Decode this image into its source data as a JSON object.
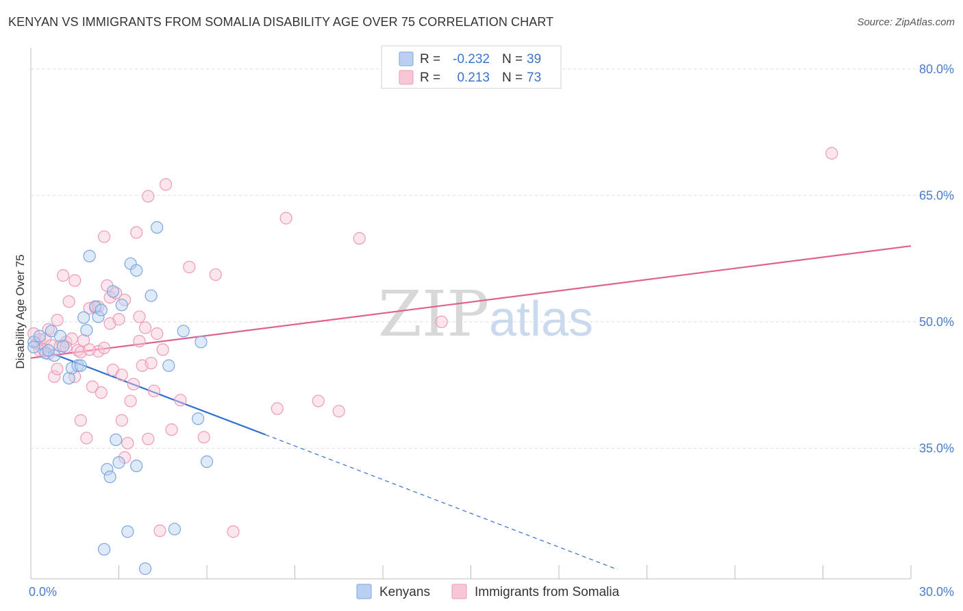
{
  "header": {
    "title": "KENYAN VS IMMIGRANTS FROM SOMALIA DISABILITY AGE OVER 75 CORRELATION CHART",
    "source": "Source: ZipAtlas.com"
  },
  "watermark": {
    "part1": "ZIP",
    "part2": "atlas"
  },
  "chart_data": {
    "type": "scatter",
    "ylabel": "Disability Age Over 75",
    "xlim": [
      0,
      30
    ],
    "ylim": [
      19.5,
      82.5
    ],
    "x_tick_labels": [
      {
        "value": 0,
        "label": "0.0%"
      },
      {
        "value": 30,
        "label": "30.0%"
      }
    ],
    "y_tick_labels": [
      {
        "value": 80,
        "label": "80.0%"
      },
      {
        "value": 65,
        "label": "65.0%"
      },
      {
        "value": 50,
        "label": "50.0%"
      },
      {
        "value": 35,
        "label": "35.0%"
      }
    ],
    "y_gridlines": [
      80,
      65,
      50,
      35
    ],
    "x_minor_ticks": [
      3,
      6,
      9,
      12,
      15,
      18,
      21,
      24,
      27,
      30
    ],
    "grid": true,
    "legend_position": "top-center",
    "series": [
      {
        "name": "Kenyans",
        "color": "#7aa6e0",
        "fill": "#b9d0f0",
        "line_color": "#2f6fd0",
        "R": "-0.232",
        "N": "39",
        "trend": {
          "x0": 0,
          "y0": 47.2,
          "x1": 8.0,
          "y1": 36.6,
          "dash_to_x": 20.0,
          "dash_to_y": 20.6
        },
        "points": [
          [
            0.1,
            47.6
          ],
          [
            0.3,
            48.3
          ],
          [
            0.5,
            46.3
          ],
          [
            0.7,
            48.9
          ],
          [
            0.8,
            46.0
          ],
          [
            1.0,
            48.3
          ],
          [
            1.1,
            47.1
          ],
          [
            1.3,
            43.3
          ],
          [
            1.4,
            44.5
          ],
          [
            1.6,
            44.8
          ],
          [
            1.7,
            44.8
          ],
          [
            1.8,
            50.5
          ],
          [
            1.9,
            49.0
          ],
          [
            2.0,
            57.8
          ],
          [
            2.2,
            51.8
          ],
          [
            2.3,
            50.6
          ],
          [
            2.4,
            51.4
          ],
          [
            2.5,
            23.0
          ],
          [
            2.6,
            32.5
          ],
          [
            2.7,
            31.6
          ],
          [
            2.8,
            53.6
          ],
          [
            2.9,
            36.0
          ],
          [
            3.0,
            33.3
          ],
          [
            3.1,
            52.0
          ],
          [
            3.3,
            25.1
          ],
          [
            3.4,
            56.9
          ],
          [
            3.6,
            56.1
          ],
          [
            3.6,
            32.9
          ],
          [
            3.9,
            20.7
          ],
          [
            4.1,
            53.1
          ],
          [
            4.3,
            61.2
          ],
          [
            4.7,
            44.8
          ],
          [
            4.9,
            25.4
          ],
          [
            5.2,
            48.9
          ],
          [
            5.7,
            38.5
          ],
          [
            5.8,
            47.6
          ],
          [
            6.0,
            33.4
          ],
          [
            0.1,
            47.0
          ],
          [
            0.6,
            46.6
          ]
        ]
      },
      {
        "name": "Immigrants from Somalia",
        "color": "#ef9ab4",
        "fill": "#f7c7d6",
        "line_color": "#e0608e",
        "R": "0.213",
        "N": "73",
        "trend": {
          "x0": 0,
          "y0": 45.7,
          "x1": 30,
          "y1": 59.0
        },
        "points": [
          [
            0.1,
            48.6
          ],
          [
            0.2,
            47.4
          ],
          [
            0.3,
            47.9
          ],
          [
            0.4,
            46.8
          ],
          [
            0.5,
            48.0
          ],
          [
            0.6,
            46.2
          ],
          [
            0.7,
            47.2
          ],
          [
            0.8,
            43.5
          ],
          [
            0.9,
            50.2
          ],
          [
            1.0,
            47.1
          ],
          [
            1.1,
            55.5
          ],
          [
            1.2,
            47.6
          ],
          [
            1.3,
            52.4
          ],
          [
            1.4,
            48.0
          ],
          [
            1.5,
            43.5
          ],
          [
            1.5,
            54.9
          ],
          [
            1.6,
            46.6
          ],
          [
            1.7,
            38.3
          ],
          [
            1.8,
            47.8
          ],
          [
            1.9,
            36.2
          ],
          [
            2.0,
            51.6
          ],
          [
            2.1,
            42.3
          ],
          [
            2.2,
            51.7
          ],
          [
            2.3,
            46.5
          ],
          [
            2.4,
            41.6
          ],
          [
            2.5,
            46.9
          ],
          [
            2.5,
            60.1
          ],
          [
            2.6,
            54.3
          ],
          [
            2.7,
            49.8
          ],
          [
            2.7,
            52.9
          ],
          [
            2.8,
            44.3
          ],
          [
            2.9,
            53.4
          ],
          [
            3.0,
            50.3
          ],
          [
            3.1,
            38.3
          ],
          [
            3.1,
            43.7
          ],
          [
            3.2,
            33.9
          ],
          [
            3.3,
            35.6
          ],
          [
            3.4,
            40.6
          ],
          [
            3.5,
            42.6
          ],
          [
            3.6,
            60.6
          ],
          [
            3.7,
            47.7
          ],
          [
            3.7,
            50.6
          ],
          [
            3.8,
            44.8
          ],
          [
            3.9,
            49.3
          ],
          [
            4.0,
            36.1
          ],
          [
            4.0,
            64.9
          ],
          [
            4.1,
            45.1
          ],
          [
            4.2,
            41.8
          ],
          [
            4.3,
            48.6
          ],
          [
            4.4,
            25.2
          ],
          [
            4.5,
            46.7
          ],
          [
            4.6,
            66.3
          ],
          [
            4.8,
            37.2
          ],
          [
            5.1,
            40.7
          ],
          [
            5.4,
            56.5
          ],
          [
            5.9,
            36.3
          ],
          [
            6.3,
            55.6
          ],
          [
            6.9,
            25.1
          ],
          [
            8.4,
            39.7
          ],
          [
            8.7,
            62.3
          ],
          [
            9.8,
            40.6
          ],
          [
            10.5,
            39.4
          ],
          [
            11.2,
            59.9
          ],
          [
            14.0,
            50.0
          ],
          [
            27.3,
            70.0
          ],
          [
            0.3,
            46.6
          ],
          [
            1.7,
            46.4
          ],
          [
            2.3,
            51.8
          ],
          [
            3.2,
            52.6
          ],
          [
            0.9,
            44.4
          ],
          [
            1.2,
            47.0
          ],
          [
            0.6,
            49.1
          ],
          [
            2.0,
            46.7
          ]
        ]
      }
    ]
  }
}
